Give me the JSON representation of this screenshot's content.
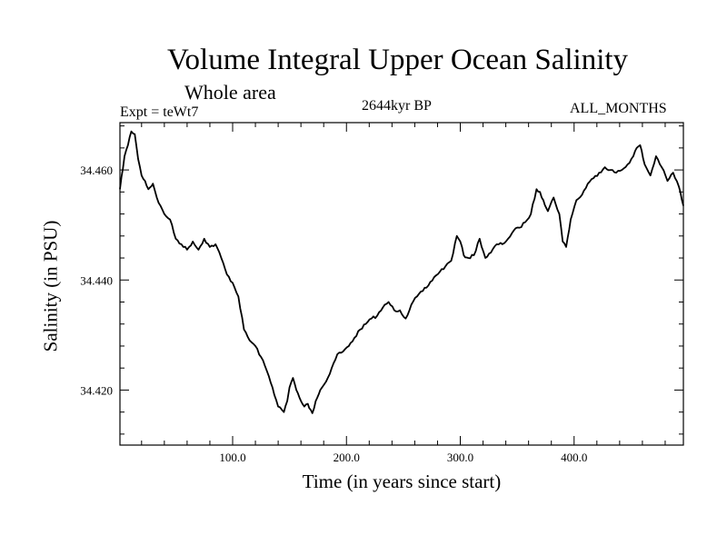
{
  "chart_data": {
    "type": "line",
    "title": "Volume Integral Upper Ocean Salinity",
    "subtitle": "Whole area",
    "experiment": "Expt = teWt7",
    "period": "2644kyr BP",
    "months": "ALL_MONTHS",
    "xlabel": "Time (in years since start)",
    "ylabel": "Salinity (in PSU)",
    "xlim": [
      1,
      496
    ],
    "ylim": [
      34.41,
      34.4686
    ],
    "xticks": [
      {
        "value": 100,
        "label": "100.0"
      },
      {
        "value": 200,
        "label": "200.0"
      },
      {
        "value": 300,
        "label": "300.0"
      },
      {
        "value": 400,
        "label": "400.0"
      }
    ],
    "yticks": [
      {
        "value": 34.42,
        "label": "34.420"
      },
      {
        "value": 34.44,
        "label": "34.440"
      },
      {
        "value": 34.46,
        "label": "34.460"
      }
    ],
    "series": [
      {
        "name": "Salinity",
        "x": [
          1,
          5,
          8,
          11,
          14,
          17,
          20,
          23,
          26,
          30,
          35,
          40,
          45,
          50,
          55,
          60,
          65,
          70,
          75,
          80,
          85,
          90,
          95,
          100,
          105,
          110,
          115,
          120,
          125,
          130,
          135,
          140,
          145,
          148,
          150,
          153,
          156,
          160,
          163,
          166,
          170,
          173,
          177,
          182,
          187,
          192,
          197,
          202,
          207,
          212,
          217,
          222,
          227,
          232,
          237,
          242,
          247,
          252,
          257,
          262,
          267,
          272,
          277,
          282,
          287,
          292,
          297,
          300,
          303,
          307,
          312,
          317,
          322,
          327,
          332,
          337,
          342,
          347,
          352,
          357,
          362,
          367,
          370,
          373,
          377,
          382,
          387,
          390,
          393,
          397,
          402,
          407,
          412,
          417,
          422,
          427,
          432,
          437,
          442,
          447,
          452,
          455,
          458,
          462,
          467,
          472,
          477,
          482,
          487,
          492,
          496
        ],
        "values": [
          34.4565,
          34.4625,
          34.4645,
          34.467,
          34.4665,
          34.462,
          34.459,
          34.458,
          34.4565,
          34.4575,
          34.454,
          34.452,
          34.451,
          34.4475,
          34.4465,
          34.4455,
          34.447,
          34.4455,
          34.4475,
          34.446,
          34.4465,
          34.444,
          34.441,
          34.4395,
          34.437,
          34.431,
          34.429,
          34.428,
          34.426,
          34.4235,
          34.4205,
          34.417,
          34.416,
          34.418,
          34.4205,
          34.4222,
          34.42,
          34.418,
          34.417,
          34.4175,
          34.4158,
          34.418,
          34.42,
          34.4215,
          34.424,
          34.4265,
          34.427,
          34.428,
          34.4295,
          34.431,
          34.432,
          34.433,
          34.4335,
          34.435,
          34.436,
          34.4345,
          34.4345,
          34.433,
          34.4355,
          34.437,
          34.438,
          34.439,
          34.4405,
          34.4415,
          34.4425,
          34.4435,
          34.448,
          34.447,
          34.4445,
          34.444,
          34.4445,
          34.4475,
          34.444,
          34.445,
          34.4465,
          34.4465,
          34.4475,
          34.449,
          34.4495,
          34.4505,
          34.452,
          34.4565,
          34.456,
          34.4545,
          34.4525,
          34.455,
          34.452,
          34.447,
          34.446,
          34.451,
          34.4545,
          34.4555,
          34.4575,
          34.4585,
          34.4595,
          34.4605,
          34.46,
          34.4595,
          34.46,
          34.461,
          34.4625,
          34.464,
          34.4645,
          34.461,
          34.459,
          34.4625,
          34.4605,
          34.458,
          34.4595,
          34.457,
          34.4535
        ]
      }
    ]
  }
}
